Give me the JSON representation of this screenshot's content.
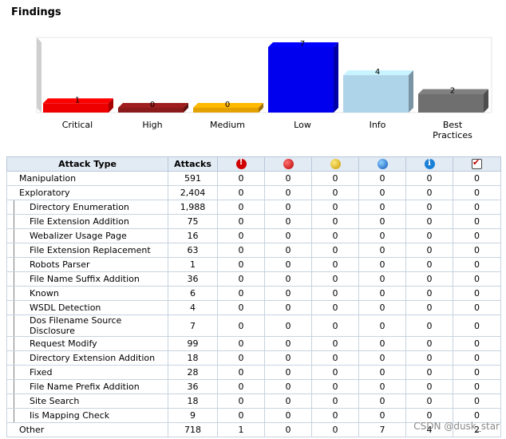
{
  "title": "Findings",
  "chart_data": {
    "type": "bar",
    "categories": [
      "Critical",
      "High",
      "Medium",
      "Low",
      "Info",
      "Best\nPractices"
    ],
    "values": [
      1,
      0,
      0,
      7,
      4,
      2
    ],
    "colors": [
      "#ee0000",
      "#8b1a1a",
      "#e3a100",
      "#0000ee",
      "#aed4ea",
      "#6f6f6f"
    ],
    "ylim": [
      0,
      7
    ]
  },
  "table": {
    "headers": {
      "attack_type": "Attack Type",
      "attacks": "Attacks"
    },
    "severity_icons": [
      "critical-icon",
      "high-icon",
      "medium-icon",
      "low-icon",
      "info-icon",
      "best-practices-icon"
    ],
    "rows": [
      {
        "name": "Manipulation",
        "level": 0,
        "attacks": "591",
        "c": "0",
        "h": "0",
        "m": "0",
        "l": "0",
        "i": "0",
        "b": "0"
      },
      {
        "name": "Exploratory",
        "level": 0,
        "attacks": "2,404",
        "c": "0",
        "h": "0",
        "m": "0",
        "l": "0",
        "i": "0",
        "b": "0"
      },
      {
        "name": "Directory Enumeration",
        "level": 1,
        "attacks": "1,988",
        "c": "0",
        "h": "0",
        "m": "0",
        "l": "0",
        "i": "0",
        "b": "0"
      },
      {
        "name": "File Extension Addition",
        "level": 1,
        "attacks": "75",
        "c": "0",
        "h": "0",
        "m": "0",
        "l": "0",
        "i": "0",
        "b": "0"
      },
      {
        "name": "Webalizer Usage Page",
        "level": 1,
        "attacks": "16",
        "c": "0",
        "h": "0",
        "m": "0",
        "l": "0",
        "i": "0",
        "b": "0"
      },
      {
        "name": "File Extension Replacement",
        "level": 1,
        "attacks": "63",
        "c": "0",
        "h": "0",
        "m": "0",
        "l": "0",
        "i": "0",
        "b": "0"
      },
      {
        "name": "Robots Parser",
        "level": 1,
        "attacks": "1",
        "c": "0",
        "h": "0",
        "m": "0",
        "l": "0",
        "i": "0",
        "b": "0"
      },
      {
        "name": "File Name Suffix Addition",
        "level": 1,
        "attacks": "36",
        "c": "0",
        "h": "0",
        "m": "0",
        "l": "0",
        "i": "0",
        "b": "0"
      },
      {
        "name": "Known",
        "level": 1,
        "attacks": "6",
        "c": "0",
        "h": "0",
        "m": "0",
        "l": "0",
        "i": "0",
        "b": "0"
      },
      {
        "name": "WSDL Detection",
        "level": 1,
        "attacks": "4",
        "c": "0",
        "h": "0",
        "m": "0",
        "l": "0",
        "i": "0",
        "b": "0"
      },
      {
        "name": "Dos Filename Source Disclosure",
        "level": 1,
        "attacks": "7",
        "c": "0",
        "h": "0",
        "m": "0",
        "l": "0",
        "i": "0",
        "b": "0"
      },
      {
        "name": "Request Modify",
        "level": 1,
        "attacks": "99",
        "c": "0",
        "h": "0",
        "m": "0",
        "l": "0",
        "i": "0",
        "b": "0"
      },
      {
        "name": "Directory Extension Addition",
        "level": 1,
        "attacks": "18",
        "c": "0",
        "h": "0",
        "m": "0",
        "l": "0",
        "i": "0",
        "b": "0"
      },
      {
        "name": "Fixed",
        "level": 1,
        "attacks": "28",
        "c": "0",
        "h": "0",
        "m": "0",
        "l": "0",
        "i": "0",
        "b": "0"
      },
      {
        "name": "File Name Prefix Addition",
        "level": 1,
        "attacks": "36",
        "c": "0",
        "h": "0",
        "m": "0",
        "l": "0",
        "i": "0",
        "b": "0"
      },
      {
        "name": "Site Search",
        "level": 1,
        "attacks": "18",
        "c": "0",
        "h": "0",
        "m": "0",
        "l": "0",
        "i": "0",
        "b": "0"
      },
      {
        "name": "Iis Mapping Check",
        "level": 1,
        "attacks": "9",
        "c": "0",
        "h": "0",
        "m": "0",
        "l": "0",
        "i": "0",
        "b": "0"
      },
      {
        "name": "Other",
        "level": 0,
        "attacks": "718",
        "c": "1",
        "h": "0",
        "m": "0",
        "l": "7",
        "i": "4",
        "b": "2"
      }
    ]
  },
  "watermark": "CSDN @dusk_star"
}
